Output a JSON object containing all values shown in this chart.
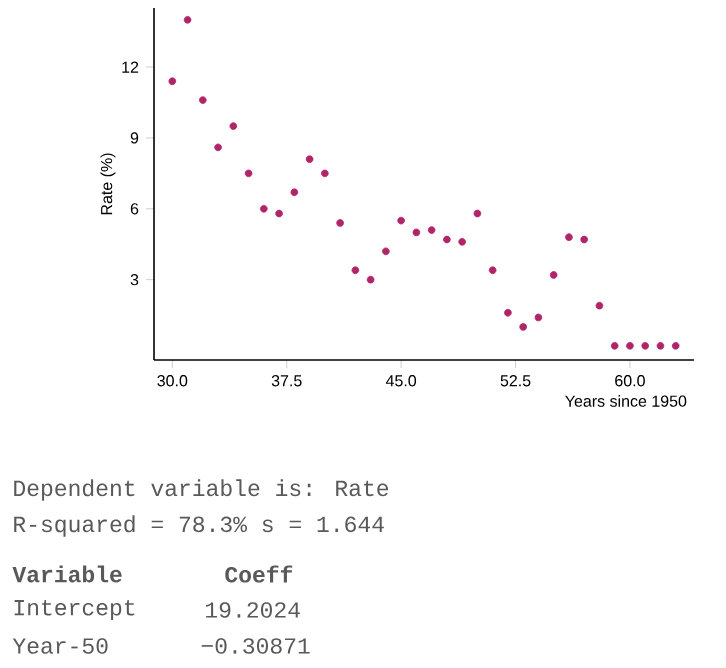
{
  "chart_data": {
    "type": "scatter",
    "xlabel": "Years since 1950",
    "ylabel": "Rate (%)",
    "x": [
      30,
      31,
      32,
      33,
      34,
      35,
      36,
      37,
      38,
      39,
      40,
      41,
      42,
      43,
      44,
      45,
      46,
      47,
      48,
      49,
      50,
      51,
      52,
      53,
      54,
      55,
      56,
      57,
      58,
      59,
      60,
      61,
      62,
      63
    ],
    "values": [
      11.4,
      14.0,
      10.6,
      8.6,
      9.5,
      7.5,
      6.0,
      5.8,
      6.7,
      8.1,
      7.5,
      5.4,
      3.4,
      3.0,
      4.2,
      5.5,
      5.0,
      5.1,
      4.7,
      4.6,
      5.8,
      3.4,
      1.6,
      1.0,
      1.4,
      3.2,
      4.8,
      4.7,
      1.9,
      0.2,
      0.2,
      0.2,
      0.2,
      0.2
    ],
    "color": "#b02468",
    "marker": "circle",
    "xlim": [
      28.8,
      64.2
    ],
    "ylim": [
      -0.4,
      14.5
    ],
    "xticks": [
      {
        "value": 30,
        "label": "30.0"
      },
      {
        "value": 37.5,
        "label": "37.5"
      },
      {
        "value": 45,
        "label": "45.0"
      },
      {
        "value": 52.5,
        "label": "52.5"
      },
      {
        "value": 60,
        "label": "60.0"
      }
    ],
    "yticks": [
      3,
      6,
      9,
      12
    ],
    "annotations": [
      "Dependent variable is: Rate",
      "R-squared = 78.3%  s = 1.644",
      "Variable",
      "Coeff",
      "Intercept",
      "19.2024",
      "Year-50",
      "−0.30871"
    ]
  }
}
